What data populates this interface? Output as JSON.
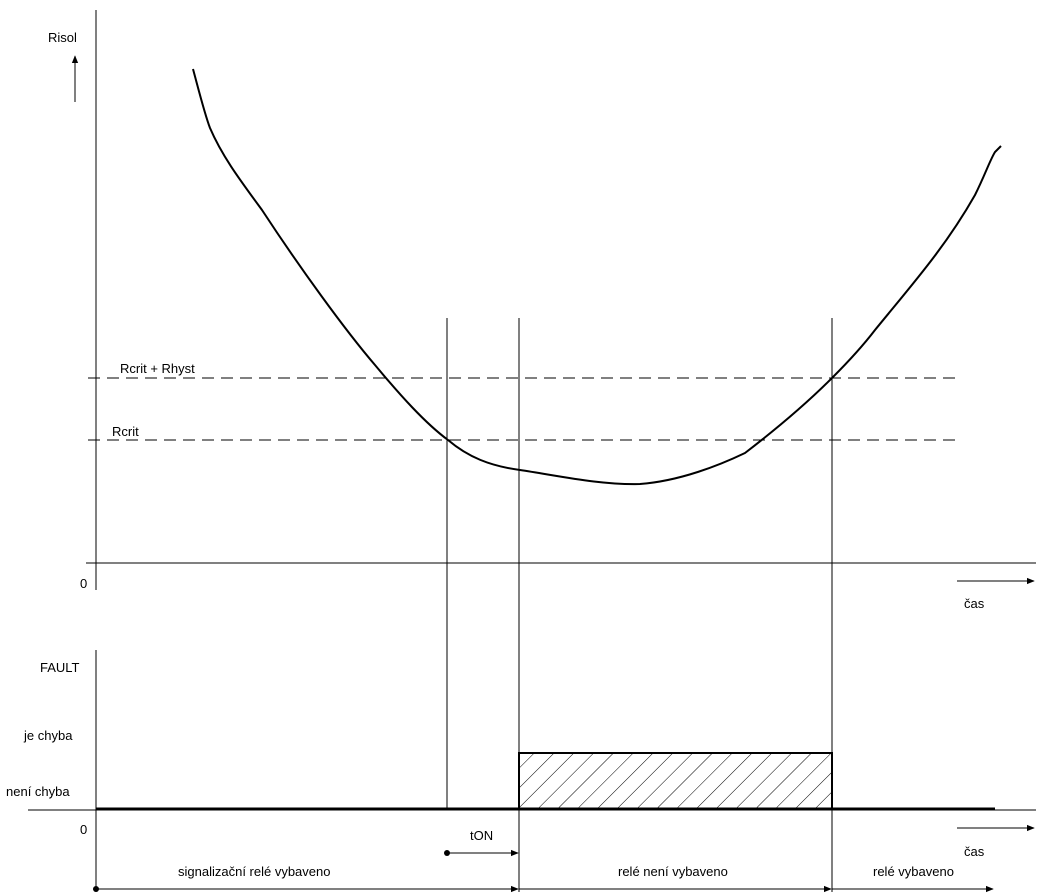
{
  "upper_plot": {
    "y_axis_label": "Risol",
    "origin_label": "0",
    "x_axis_label": "čas",
    "threshold_high_label": "Rcrit + Rhyst",
    "threshold_low_label": "Rcrit"
  },
  "lower_plot": {
    "y_axis_label": "FAULT",
    "level_high_label": "je chyba",
    "level_low_label": "není chyba",
    "origin_label": "0",
    "x_axis_label": "čas",
    "delay_label": "tON"
  },
  "timeline": {
    "segments": [
      "signalizační relé vybaveno",
      "relé není vybaveno",
      "relé vybaveno"
    ]
  },
  "colors": {
    "line": "#000000",
    "background": "#ffffff"
  }
}
